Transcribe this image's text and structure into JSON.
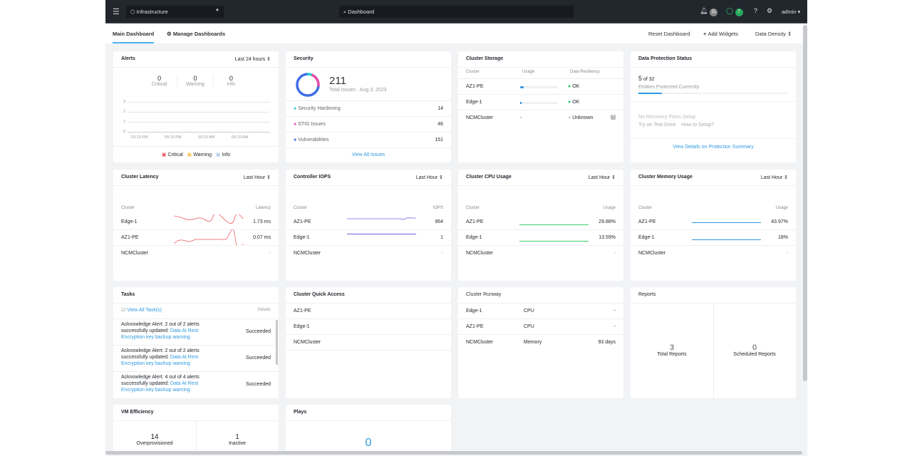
{
  "topbar": {
    "app": "Infrastructure",
    "search": "Dashboard",
    "alerts_count": "11",
    "tasks_count": "7",
    "user": "admin"
  },
  "tabs": {
    "main": "Main Dashboard",
    "manage": "Manage Dashboards",
    "reset": "Reset Dashboard",
    "add": "Add Widgets",
    "density": "Data Density"
  },
  "alerts": {
    "title": "Alerts",
    "range": "Last 24 hours",
    "critical": "0",
    "critical_label": "Critical",
    "warning": "0",
    "warning_label": "Warning",
    "info": "0",
    "info_label": "Info",
    "y_ticks": [
      "3",
      "2",
      "1",
      "0"
    ],
    "x_ticks": [
      "03:10 PM",
      "09:10 PM",
      "03:10 AM",
      "09:10 AM"
    ],
    "legend": [
      "Critical",
      "Warning",
      "Info"
    ],
    "colors": {
      "critical": "#e84a5f",
      "warning": "#f5c04a",
      "info": "#a9c7e8"
    }
  },
  "security": {
    "title": "Security",
    "total": "211",
    "total_label": "Total Issues · Aug 3, 2023",
    "items": [
      {
        "label": "Security Hardening",
        "value": "14",
        "color": "#2ad2c9"
      },
      {
        "label": "STIG Issues",
        "value": "46",
        "color": "#ea4fa8"
      },
      {
        "label": "Vulnerabilities",
        "value": "151",
        "color": "#3f6ee8"
      }
    ],
    "link": "View All Issues"
  },
  "storage": {
    "title": "Cluster Storage",
    "headers": [
      "Cluster",
      "Usage",
      "Data Resiliency"
    ],
    "rows": [
      {
        "name": "AZ1-PE",
        "usage": 0.1,
        "status": "OK"
      },
      {
        "name": "Edge-1",
        "usage": 0.02,
        "status": "OK"
      },
      {
        "name": "NCMCluster",
        "usage_text": "-",
        "status": "Unknown"
      }
    ]
  },
  "protection": {
    "title": "Data Protection Status",
    "count": "5",
    "of": "of 32",
    "label": "Entities Protected Currently",
    "fraction": 0.156,
    "no_plans": "No Recovery Plans Setup",
    "test_drive": "Try on Test Drive",
    "how": "How to Setup?",
    "link": "View Details on Protection Summary"
  },
  "latency": {
    "title": "Cluster Latency",
    "range": "Last Hour",
    "headers": [
      "Cluster",
      "Latency"
    ],
    "rows": [
      {
        "name": "Edge-1",
        "value": "1.73 ms"
      },
      {
        "name": "AZ1-PE",
        "value": "0.07 ms"
      },
      {
        "name": "NCMCluster",
        "value": "-"
      }
    ]
  },
  "iops": {
    "title": "Controller IOPS",
    "range": "Last Hour",
    "headers": [
      "Cluster",
      "IOPS"
    ],
    "rows": [
      {
        "name": "AZ1-PE",
        "value": "964"
      },
      {
        "name": "Edge-1",
        "value": "1"
      },
      {
        "name": "NCMCluster",
        "value": "-"
      }
    ]
  },
  "cpu": {
    "title": "Cluster CPU Usage",
    "range": "Last Hour",
    "headers": [
      "Cluster",
      "Usage"
    ],
    "rows": [
      {
        "name": "AZ1-PE",
        "value": "29.88%"
      },
      {
        "name": "Edge-1",
        "value": "13.59%"
      },
      {
        "name": "NCMCluster",
        "value": "-"
      }
    ]
  },
  "memory": {
    "title": "Cluster Memory Usage",
    "range": "Last Hour",
    "headers": [
      "Cluster",
      "Usage"
    ],
    "rows": [
      {
        "name": "AZ1-PE",
        "value": "43.97%"
      },
      {
        "name": "Edge-1",
        "value": "18%"
      },
      {
        "name": "NCMCluster",
        "value": "-"
      }
    ]
  },
  "tasks": {
    "title": "Tasks",
    "view_all": "View All Task(s)",
    "details": "Details",
    "items": [
      {
        "text": "Acknowledge Alert: 2 out of 2 alerts successfully updated:",
        "link": "Data At Rest Encryption key backup warning",
        "status": "Succeeded"
      },
      {
        "text": "Acknowledge Alert: 2 out of 2 alerts successfully updated:",
        "link": "Data At Rest Encryption key backup warning",
        "status": "Succeeded"
      },
      {
        "text": "Acknowledge Alert: 4 out of 4 alerts successfully updated:",
        "link": "Data At Rest Encryption key backup warning",
        "status": "Succeeded"
      }
    ]
  },
  "quick": {
    "title": "Cluster Quick Access",
    "items": [
      "AZ1-PE",
      "Edge-1",
      "NCMCluster"
    ]
  },
  "runway": {
    "title": "Cluster Runway",
    "rows": [
      {
        "name": "Edge-1",
        "res": "CPU",
        "value": "-"
      },
      {
        "name": "AZ1-PE",
        "res": "CPU",
        "value": "-"
      },
      {
        "name": "NCMCluster",
        "res": "Memory",
        "value": "93 days"
      }
    ]
  },
  "reports": {
    "title": "Reports",
    "total": "3",
    "total_label": "Total Reports",
    "scheduled": "0",
    "scheduled_label": "Scheduled Reports"
  },
  "vm": {
    "title": "VM Efficiency",
    "over": "14",
    "over_label": "Overprovisioned",
    "inactive": "1",
    "inactive_label": "Inactive"
  },
  "plays": {
    "title": "Plays",
    "count": "0"
  }
}
